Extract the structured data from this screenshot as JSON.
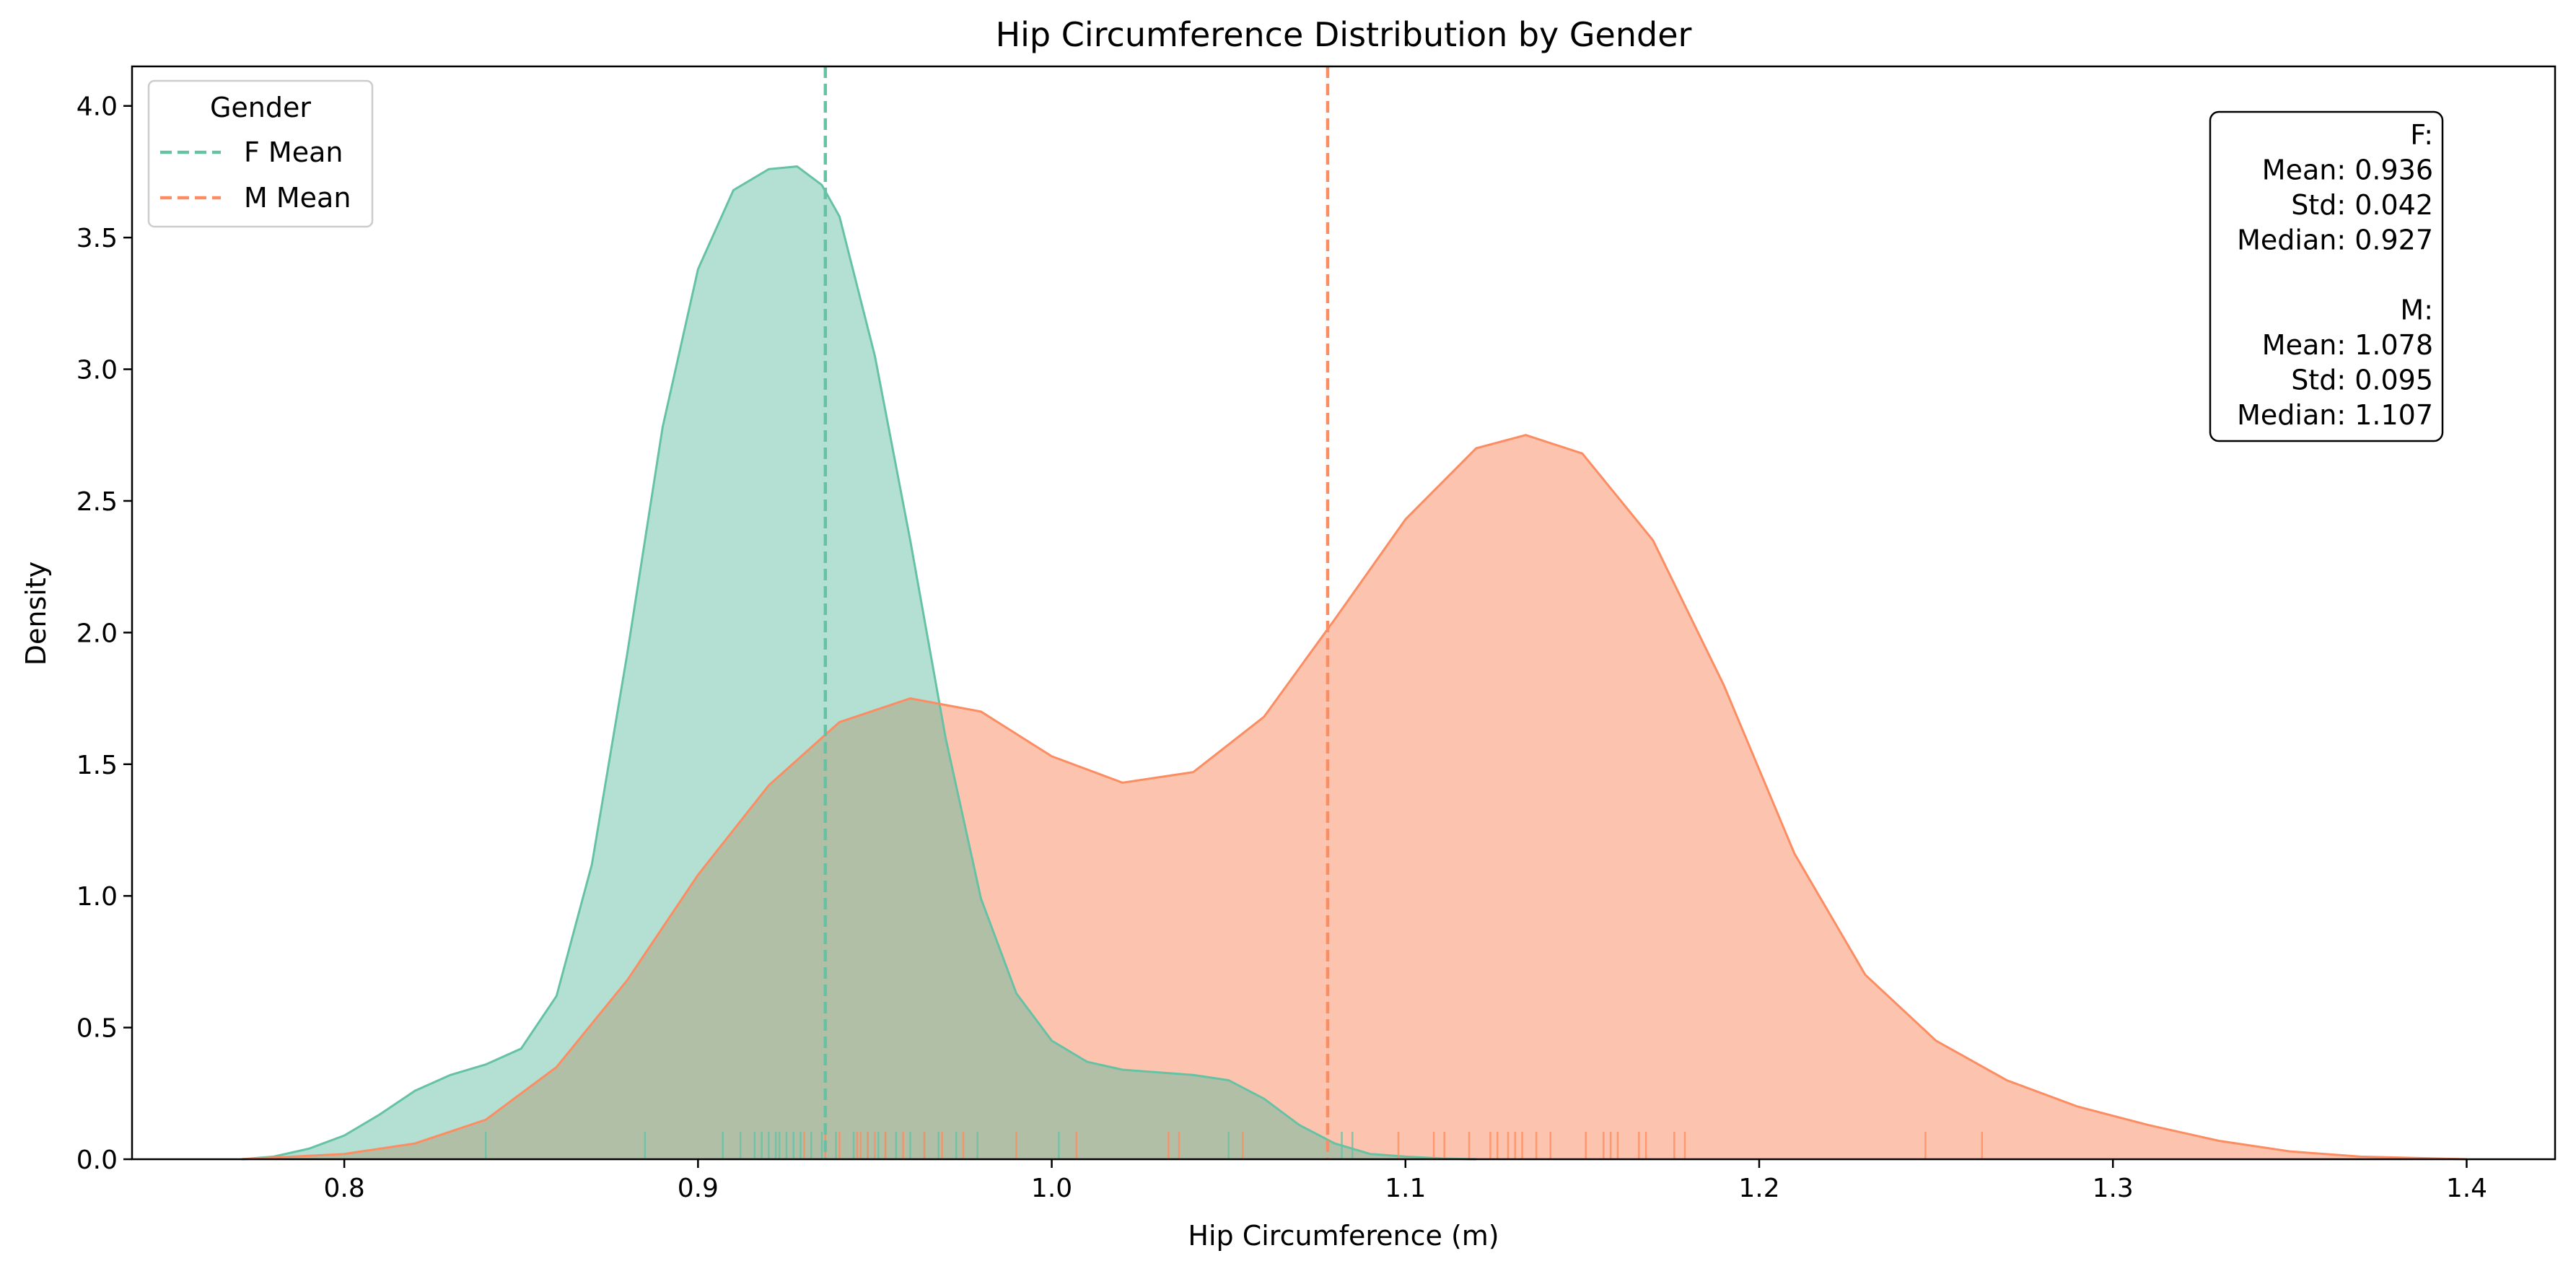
{
  "chart_data": {
    "type": "area",
    "title": "Hip Circumference Distribution by Gender",
    "xlabel": "Hip Circumference (m)",
    "ylabel": "Density",
    "xlim": [
      0.74,
      1.425
    ],
    "ylim": [
      0,
      4.15
    ],
    "x_ticks": [
      0.8,
      0.9,
      1.0,
      1.1,
      1.2,
      1.3,
      1.4
    ],
    "x_tick_labels": [
      "0.8",
      "0.9",
      "1.0",
      "1.1",
      "1.2",
      "1.3",
      "1.4"
    ],
    "y_ticks": [
      0.0,
      0.5,
      1.0,
      1.5,
      2.0,
      2.5,
      3.0,
      3.5,
      4.0
    ],
    "y_tick_labels": [
      "0.0",
      "0.5",
      "1.0",
      "1.5",
      "2.0",
      "2.5",
      "3.0",
      "3.5",
      "4.0"
    ],
    "grid": false,
    "legend": {
      "title": "Gender",
      "placement": "top-left",
      "entries": [
        "F Mean",
        "M Mean"
      ]
    },
    "colors": {
      "F_line": "#66c2a5",
      "F_fill": "#b3e0d2",
      "F_mean": "#66c2a5",
      "M_line": "#fc8d62",
      "M_fill": "#fcc4af",
      "M_mean": "#fc8d62",
      "overlap": "#b2bfa7"
    },
    "series": [
      {
        "key": "F",
        "x": [
          0.771,
          0.78,
          0.79,
          0.8,
          0.81,
          0.82,
          0.83,
          0.84,
          0.85,
          0.86,
          0.87,
          0.88,
          0.89,
          0.9,
          0.91,
          0.92,
          0.928,
          0.935,
          0.94,
          0.95,
          0.96,
          0.97,
          0.98,
          0.99,
          1.0,
          1.01,
          1.02,
          1.03,
          1.04,
          1.05,
          1.06,
          1.07,
          1.08,
          1.09,
          1.1,
          1.11,
          1.12
        ],
        "y": [
          0.0,
          0.01,
          0.04,
          0.09,
          0.17,
          0.26,
          0.32,
          0.36,
          0.42,
          0.62,
          1.12,
          1.92,
          2.78,
          3.38,
          3.68,
          3.76,
          3.77,
          3.7,
          3.58,
          3.05,
          2.35,
          1.6,
          0.99,
          0.63,
          0.45,
          0.37,
          0.34,
          0.33,
          0.32,
          0.3,
          0.23,
          0.13,
          0.06,
          0.02,
          0.01,
          0.003,
          0.0
        ],
        "mean_line": 0.936
      },
      {
        "key": "M",
        "x": [
          0.771,
          0.8,
          0.82,
          0.84,
          0.86,
          0.88,
          0.9,
          0.92,
          0.94,
          0.96,
          0.98,
          1.0,
          1.02,
          1.04,
          1.06,
          1.08,
          1.1,
          1.12,
          1.134,
          1.15,
          1.17,
          1.19,
          1.21,
          1.23,
          1.25,
          1.27,
          1.29,
          1.31,
          1.33,
          1.35,
          1.37,
          1.4
        ],
        "y": [
          0.0,
          0.02,
          0.06,
          0.15,
          0.35,
          0.68,
          1.08,
          1.42,
          1.66,
          1.75,
          1.7,
          1.53,
          1.43,
          1.47,
          1.68,
          2.05,
          2.43,
          2.7,
          2.75,
          2.68,
          2.35,
          1.8,
          1.16,
          0.7,
          0.45,
          0.3,
          0.2,
          0.13,
          0.07,
          0.03,
          0.01,
          0.0
        ],
        "mean_line": 1.078
      }
    ],
    "rug": {
      "F": [
        0.84,
        0.885,
        0.907,
        0.912,
        0.916,
        0.918,
        0.92,
        0.922,
        0.923,
        0.925,
        0.927,
        0.929,
        0.932,
        0.935,
        0.939,
        0.944,
        0.948,
        0.951,
        0.953,
        0.956,
        0.96,
        0.964,
        0.968,
        0.973,
        0.979,
        1.002,
        1.05,
        1.082,
        1.085
      ],
      "M": [
        0.93,
        0.936,
        0.94,
        0.945,
        0.946,
        0.948,
        0.95,
        0.953,
        0.958,
        0.964,
        0.969,
        0.975,
        0.99,
        1.007,
        1.033,
        1.036,
        1.054,
        1.098,
        1.108,
        1.111,
        1.118,
        1.124,
        1.126,
        1.129,
        1.131,
        1.133,
        1.137,
        1.141,
        1.151,
        1.156,
        1.158,
        1.16,
        1.166,
        1.168,
        1.176,
        1.179,
        1.247,
        1.263
      ]
    },
    "stats_box": {
      "lines": [
        "F:",
        "Mean: 0.936",
        "Std: 0.042",
        "Median: 0.927",
        "",
        "M:",
        "Mean: 1.078",
        "Std: 0.095",
        "Median: 1.107"
      ],
      "placement": "top-right"
    }
  }
}
